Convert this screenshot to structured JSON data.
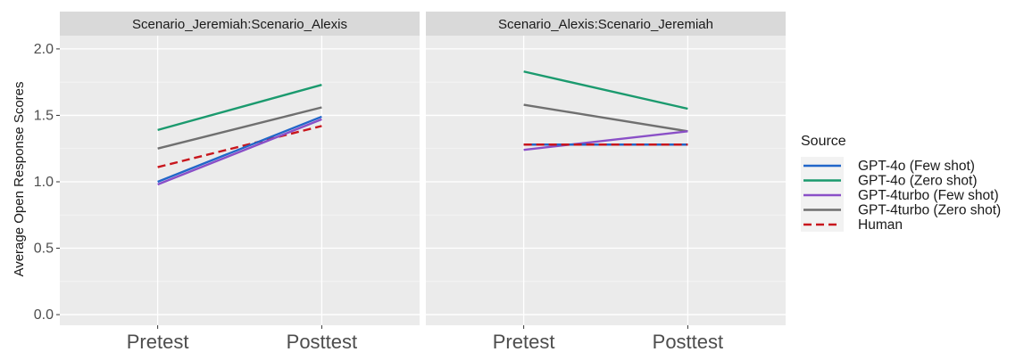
{
  "chart_data": {
    "type": "line",
    "ylabel": "Average Open Response Scores",
    "xlabel": "",
    "categories": [
      "Pretest",
      "Posttest"
    ],
    "ylim": [
      -0.08,
      2.1
    ],
    "yticks": [
      0.0,
      0.5,
      1.0,
      1.5,
      2.0
    ],
    "ytick_labels": [
      "0.0",
      "0.5",
      "1.0",
      "1.5",
      "2.0"
    ],
    "grid": true,
    "legend": {
      "title": "Source",
      "placement": "right",
      "entries": [
        {
          "key": "gpt4o_few",
          "label": "GPT-4o (Few shot)",
          "color": "#2166c9",
          "dash": "solid"
        },
        {
          "key": "gpt4o_zero",
          "label": "GPT-4o (Zero shot)",
          "color": "#1b9a6e",
          "dash": "solid"
        },
        {
          "key": "gpt4t_few",
          "label": "GPT-4turbo (Few shot)",
          "color": "#8a4fc7",
          "dash": "solid"
        },
        {
          "key": "gpt4t_zero",
          "label": "GPT-4turbo (Zero shot)",
          "color": "#707070",
          "dash": "solid"
        },
        {
          "key": "human",
          "label": "Human",
          "color": "#c8161d",
          "dash": "dashed"
        }
      ]
    },
    "panels": [
      {
        "strip": "Scenario_Jeremiah:Scenario_Alexis",
        "series": [
          {
            "key": "gpt4o_zero",
            "values": [
              1.39,
              1.73
            ]
          },
          {
            "key": "gpt4t_zero",
            "values": [
              1.25,
              1.56
            ]
          },
          {
            "key": "human",
            "values": [
              1.11,
              1.42
            ]
          },
          {
            "key": "gpt4o_few",
            "values": [
              1.0,
              1.49
            ]
          },
          {
            "key": "gpt4t_few",
            "values": [
              0.98,
              1.47
            ]
          }
        ]
      },
      {
        "strip": "Scenario_Alexis:Scenario_Jeremiah",
        "series": [
          {
            "key": "gpt4o_zero",
            "values": [
              1.83,
              1.55
            ]
          },
          {
            "key": "gpt4t_zero",
            "values": [
              1.58,
              1.38
            ]
          },
          {
            "key": "gpt4t_few",
            "values": [
              1.24,
              1.38
            ]
          },
          {
            "key": "gpt4o_few",
            "values": [
              1.28,
              1.28
            ]
          },
          {
            "key": "human",
            "values": [
              1.28,
              1.28
            ]
          }
        ]
      }
    ]
  }
}
